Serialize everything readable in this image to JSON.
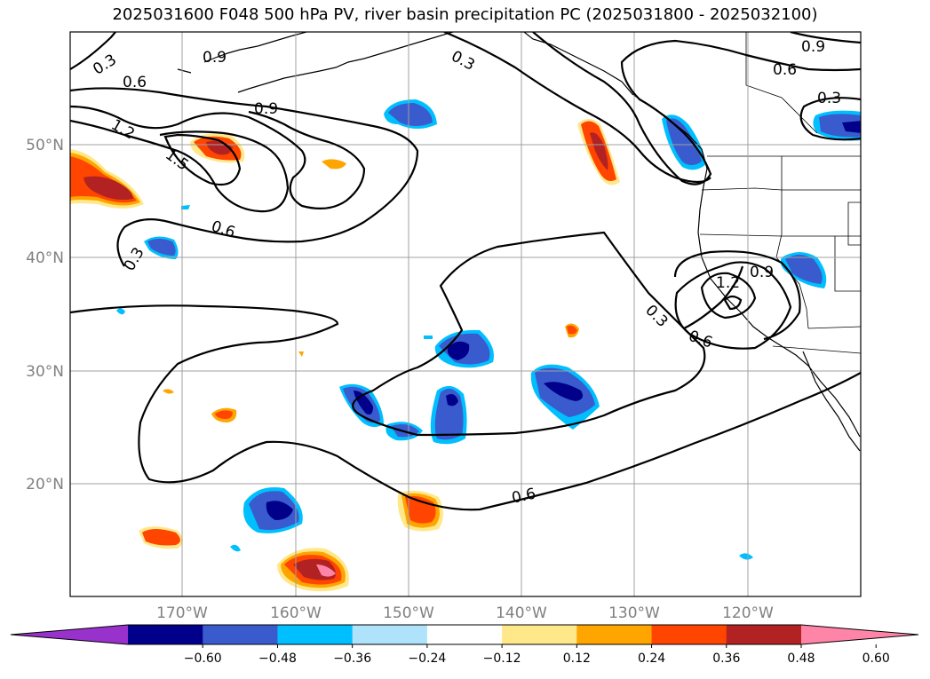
{
  "title": "2025031600 F048 500 hPa PV, river basin precipitation PC (2025031800 - 2025032100)",
  "lat_labels": [
    "50°N",
    "40°N",
    "30°N",
    "20°N"
  ],
  "lon_labels": [
    "170°W",
    "160°W",
    "150°W",
    "140°W",
    "130°W",
    "120°W"
  ],
  "contour_labels": [
    "0.3",
    "0.6",
    "0.9",
    "0.3",
    "0.6",
    "0.9",
    "0.9",
    "1.2",
    "1.5",
    "0.6",
    "0.3",
    "0.3",
    "0.6",
    "0.9",
    "1.2",
    "0.3",
    "0.6",
    "0.9",
    "0.3"
  ],
  "colorbar": {
    "ticks": [
      "−0.60",
      "−0.48",
      "−0.36",
      "−0.24",
      "−0.12",
      "0.12",
      "0.24",
      "0.36",
      "0.48",
      "0.60"
    ],
    "colors": [
      "#9932cc",
      "#00008b",
      "#3a5bcd",
      "#00bfff",
      "#aee3fb",
      "#ffffff",
      "#ffe88a",
      "#ffa500",
      "#ff4500",
      "#b22222",
      "#ff85a8"
    ]
  },
  "precip_colors": {
    "neg_weak": "#00bfff",
    "neg_mid": "#3a5bcd",
    "neg_strong": "#00008b",
    "pos_weak": "#ffa500",
    "pos_mid": "#ff4500",
    "pos_strong": "#b22222",
    "pos_max": "#ff85a8"
  }
}
